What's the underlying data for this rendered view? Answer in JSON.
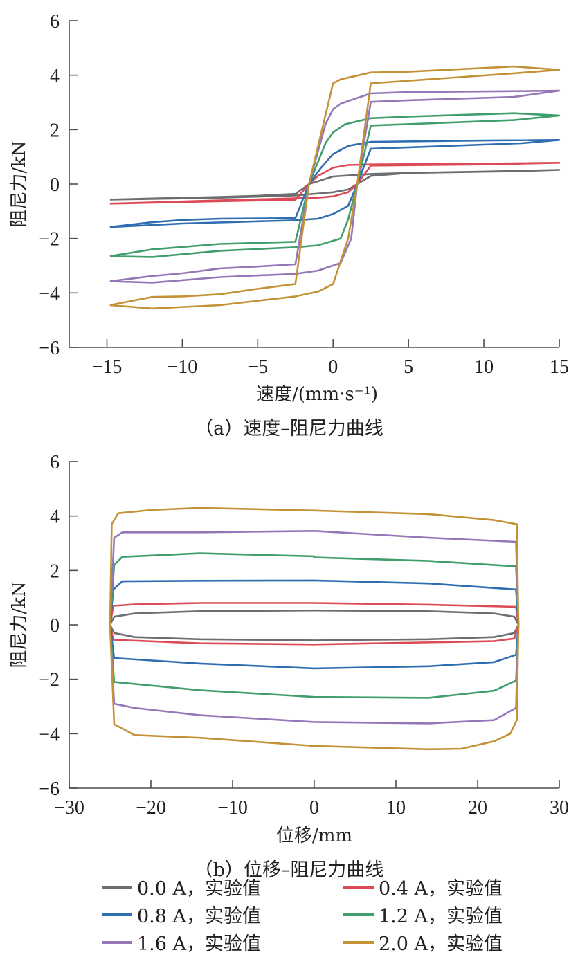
{
  "colors": {
    "0.0A": "#6d6e70",
    "0.4A": "#dc4b55",
    "0.8A": "#2f6db1",
    "1.2A": "#3f9e6c",
    "1.6A": "#9577b8",
    "2.0A": "#c39236",
    "axis": "#4d4d4f"
  },
  "legend": [
    {
      "key": "0.0A",
      "label": "0.0 A，实验值"
    },
    {
      "key": "0.4A",
      "label": "0.4 A，实验值"
    },
    {
      "key": "0.8A",
      "label": "0.8 A，实验值"
    },
    {
      "key": "1.2A",
      "label": "1.2 A，实验值"
    },
    {
      "key": "1.6A",
      "label": "1.6 A，实验值"
    },
    {
      "key": "2.0A",
      "label": "2.0 A，实验值"
    }
  ],
  "captions": {
    "a": "（a）速度–阻尼力曲线",
    "b": "（b）位移–阻尼力曲线"
  },
  "chart_data": [
    {
      "type": "line",
      "title": "（a）速度–阻尼力曲线",
      "xlabel": "速度/(mm·s⁻¹)",
      "ylabel": "阻尼力/kN",
      "xlim": [
        -17.5,
        15
      ],
      "ylim": [
        -6,
        6
      ],
      "xticks": [
        -15,
        -10,
        -5,
        0,
        5,
        10,
        15
      ],
      "yticks": [
        -6,
        -4,
        -2,
        0,
        2,
        4,
        6
      ],
      "xtick_labels": [
        "−15",
        "−10",
        "−5",
        "0",
        "5",
        "10",
        "15"
      ],
      "ytick_labels": [
        "−6",
        "−4",
        "−2",
        "0",
        "2",
        "4",
        "6"
      ],
      "grid": false,
      "series": [
        {
          "name": "0.0 A，实验值",
          "key": "0.0A",
          "points": [
            [
              -14.8,
              -0.57
            ],
            [
              -12,
              -0.53
            ],
            [
              -7.5,
              -0.47
            ],
            [
              -5,
              -0.43
            ],
            [
              -2.5,
              -0.36
            ],
            [
              -1.6,
              0
            ],
            [
              0,
              0.28
            ],
            [
              2.5,
              0.37
            ],
            [
              5,
              0.41
            ],
            [
              10,
              0.46
            ],
            [
              15,
              0.52
            ],
            [
              12,
              0.47
            ],
            [
              5,
              0.41
            ],
            [
              2.5,
              0.3
            ],
            [
              1.6,
              0
            ],
            [
              1,
              -0.2
            ],
            [
              0,
              -0.3
            ],
            [
              -2.5,
              -0.42
            ],
            [
              -7.5,
              -0.5
            ],
            [
              -14.8,
              -0.57
            ]
          ]
        },
        {
          "name": "0.4 A，实验值",
          "key": "0.4A",
          "points": [
            [
              -14.8,
              -0.72
            ],
            [
              -7.5,
              -0.63
            ],
            [
              -2.5,
              -0.58
            ],
            [
              -1.6,
              0
            ],
            [
              -1,
              0.3
            ],
            [
              0,
              0.6
            ],
            [
              1,
              0.7
            ],
            [
              2.5,
              0.72
            ],
            [
              10,
              0.75
            ],
            [
              15,
              0.78
            ],
            [
              10,
              0.72
            ],
            [
              2.5,
              0.68
            ],
            [
              1.6,
              0
            ],
            [
              1,
              -0.3
            ],
            [
              0,
              -0.45
            ],
            [
              -1,
              -0.5
            ],
            [
              -2.5,
              -0.52
            ],
            [
              -7.5,
              -0.6
            ],
            [
              -14.8,
              -0.72
            ]
          ]
        },
        {
          "name": "0.8 A，实验值",
          "key": "0.8A",
          "points": [
            [
              -14.8,
              -1.58
            ],
            [
              -12,
              -1.4
            ],
            [
              -10,
              -1.32
            ],
            [
              -7.5,
              -1.27
            ],
            [
              -2.5,
              -1.25
            ],
            [
              -1.6,
              0
            ],
            [
              -0.8,
              0.6
            ],
            [
              0,
              1.1
            ],
            [
              1,
              1.4
            ],
            [
              2.5,
              1.55
            ],
            [
              10,
              1.6
            ],
            [
              15,
              1.62
            ],
            [
              12.5,
              1.5
            ],
            [
              2.5,
              1.3
            ],
            [
              1.6,
              0
            ],
            [
              1,
              -0.8
            ],
            [
              0,
              -1.1
            ],
            [
              -1,
              -1.27
            ],
            [
              -2.5,
              -1.33
            ],
            [
              -10,
              -1.45
            ],
            [
              -14.8,
              -1.58
            ]
          ]
        },
        {
          "name": "1.2 A，实验值",
          "key": "1.2A",
          "points": [
            [
              -14.8,
              -2.65
            ],
            [
              -12,
              -2.4
            ],
            [
              -7.5,
              -2.2
            ],
            [
              -2.5,
              -2.12
            ],
            [
              -1.6,
              0
            ],
            [
              -0.5,
              1.5
            ],
            [
              0,
              1.9
            ],
            [
              0.8,
              2.2
            ],
            [
              2.5,
              2.42
            ],
            [
              5,
              2.48
            ],
            [
              12,
              2.6
            ],
            [
              15,
              2.52
            ],
            [
              12,
              2.35
            ],
            [
              2.5,
              2.15
            ],
            [
              1.6,
              0
            ],
            [
              1,
              -1.3
            ],
            [
              0.5,
              -2
            ],
            [
              -1,
              -2.25
            ],
            [
              -2.5,
              -2.32
            ],
            [
              -7.5,
              -2.45
            ],
            [
              -12,
              -2.68
            ],
            [
              -14.8,
              -2.65
            ]
          ]
        },
        {
          "name": "1.6 A，实验值",
          "key": "1.6A",
          "points": [
            [
              -14.8,
              -3.57
            ],
            [
              -12,
              -3.38
            ],
            [
              -10,
              -3.28
            ],
            [
              -7.5,
              -3.1
            ],
            [
              -5,
              -3.03
            ],
            [
              -2.5,
              -2.95
            ],
            [
              -1.6,
              0
            ],
            [
              -0.5,
              2.2
            ],
            [
              0,
              2.75
            ],
            [
              0.5,
              2.95
            ],
            [
              1,
              3.05
            ],
            [
              2.5,
              3.33
            ],
            [
              5,
              3.38
            ],
            [
              15,
              3.43
            ],
            [
              12,
              3.2
            ],
            [
              5,
              3.08
            ],
            [
              2.5,
              3.02
            ],
            [
              1.6,
              0
            ],
            [
              1.2,
              -2
            ],
            [
              0.5,
              -2.9
            ],
            [
              -1,
              -3.18
            ],
            [
              -2.5,
              -3.3
            ],
            [
              -7.5,
              -3.42
            ],
            [
              -12,
              -3.62
            ],
            [
              -14.8,
              -3.57
            ]
          ]
        },
        {
          "name": "2.0 A，实验值",
          "key": "2.0A",
          "points": [
            [
              -14.8,
              -4.45
            ],
            [
              -12,
              -4.15
            ],
            [
              -10,
              -4.13
            ],
            [
              -7.5,
              -4.05
            ],
            [
              -5,
              -3.85
            ],
            [
              -2.5,
              -3.67
            ],
            [
              -1.6,
              0
            ],
            [
              0,
              3.7
            ],
            [
              0.5,
              3.85
            ],
            [
              2.5,
              4.1
            ],
            [
              5,
              4.13
            ],
            [
              12,
              4.32
            ],
            [
              15,
              4.2
            ],
            [
              12,
              4.07
            ],
            [
              2.5,
              3.7
            ],
            [
              1.6,
              0
            ],
            [
              1,
              -2
            ],
            [
              0,
              -3.68
            ],
            [
              -1,
              -3.95
            ],
            [
              -2.5,
              -4.13
            ],
            [
              -7.5,
              -4.45
            ],
            [
              -12,
              -4.57
            ],
            [
              -14.8,
              -4.45
            ]
          ]
        }
      ]
    },
    {
      "type": "line",
      "title": "（b）位移–阻尼力曲线",
      "xlabel": "位移/mm",
      "ylabel": "阻尼力/kN",
      "xlim": [
        -30,
        30
      ],
      "ylim": [
        -6,
        6
      ],
      "xticks": [
        -30,
        -20,
        -10,
        0,
        10,
        20,
        30
      ],
      "yticks": [
        -6,
        -4,
        -2,
        0,
        2,
        4,
        6
      ],
      "xtick_labels": [
        "−30",
        "−20",
        "−10",
        "0",
        "10",
        "20",
        "30"
      ],
      "ytick_labels": [
        "−6",
        "−4",
        "−2",
        "0",
        "2",
        "4",
        "6"
      ],
      "grid": false,
      "series": [
        {
          "name": "0.0 A，实验值",
          "key": "0.0A",
          "points": [
            [
              -25,
              0
            ],
            [
              -24.5,
              0.3
            ],
            [
              -22,
              0.42
            ],
            [
              -14,
              0.5
            ],
            [
              0,
              0.53
            ],
            [
              14,
              0.5
            ],
            [
              22,
              0.42
            ],
            [
              24.5,
              0.3
            ],
            [
              25,
              0
            ],
            [
              24.5,
              -0.3
            ],
            [
              22,
              -0.45
            ],
            [
              14,
              -0.53
            ],
            [
              0,
              -0.57
            ],
            [
              -14,
              -0.53
            ],
            [
              -22,
              -0.45
            ],
            [
              -24.5,
              -0.3
            ],
            [
              -25,
              0
            ]
          ]
        },
        {
          "name": "0.4 A，实验值",
          "key": "0.4A",
          "points": [
            [
              -25,
              0
            ],
            [
              -24.6,
              0.7
            ],
            [
              -22,
              0.75
            ],
            [
              -14,
              0.8
            ],
            [
              0,
              0.8
            ],
            [
              14,
              0.74
            ],
            [
              24.7,
              0.66
            ],
            [
              25,
              0
            ],
            [
              24.5,
              -0.5
            ],
            [
              22,
              -0.6
            ],
            [
              0,
              -0.72
            ],
            [
              -14,
              -0.68
            ],
            [
              -24.6,
              -0.55
            ],
            [
              -25,
              0
            ]
          ]
        },
        {
          "name": "0.8 A，实验值",
          "key": "0.8A",
          "points": [
            [
              -25,
              0
            ],
            [
              -24.6,
              1.3
            ],
            [
              -23.5,
              1.6
            ],
            [
              -14,
              1.62
            ],
            [
              0,
              1.63
            ],
            [
              14,
              1.52
            ],
            [
              24.7,
              1.3
            ],
            [
              25,
              0
            ],
            [
              24.7,
              -1.1
            ],
            [
              22,
              -1.37
            ],
            [
              14,
              -1.52
            ],
            [
              0,
              -1.6
            ],
            [
              -14,
              -1.42
            ],
            [
              -24.5,
              -1.22
            ],
            [
              -25,
              0
            ]
          ]
        },
        {
          "name": "1.2 A，实验值",
          "key": "1.2A",
          "points": [
            [
              -25,
              0
            ],
            [
              -24.5,
              2.2
            ],
            [
              -23.5,
              2.5
            ],
            [
              -14,
              2.63
            ],
            [
              0,
              2.52
            ],
            [
              0,
              2.48
            ],
            [
              14,
              2.35
            ],
            [
              24.7,
              2.15
            ],
            [
              25,
              0
            ],
            [
              24.7,
              -2.05
            ],
            [
              22,
              -2.42
            ],
            [
              14,
              -2.68
            ],
            [
              0,
              -2.65
            ],
            [
              -14,
              -2.4
            ],
            [
              -24.5,
              -2.1
            ],
            [
              -25,
              0
            ]
          ]
        },
        {
          "name": "1.6 A，实验值",
          "key": "1.6A",
          "points": [
            [
              -25,
              0
            ],
            [
              -24.5,
              3.2
            ],
            [
              -23.5,
              3.4
            ],
            [
              -14,
              3.4
            ],
            [
              0,
              3.45
            ],
            [
              14,
              3.2
            ],
            [
              24.7,
              3.05
            ],
            [
              25,
              0
            ],
            [
              24.7,
              -3.05
            ],
            [
              22,
              -3.5
            ],
            [
              14,
              -3.62
            ],
            [
              0,
              -3.57
            ],
            [
              -14,
              -3.32
            ],
            [
              -22,
              -3.05
            ],
            [
              -24.5,
              -2.9
            ],
            [
              -25,
              0
            ]
          ]
        },
        {
          "name": "2.0 A，实验值",
          "key": "2.0A",
          "points": [
            [
              -25,
              0
            ],
            [
              -24.8,
              3.7
            ],
            [
              -24,
              4.1
            ],
            [
              -20,
              4.22
            ],
            [
              -14,
              4.3
            ],
            [
              0,
              4.2
            ],
            [
              14,
              4.07
            ],
            [
              22,
              3.85
            ],
            [
              24.8,
              3.7
            ],
            [
              25,
              0
            ],
            [
              24.8,
              -3.5
            ],
            [
              24,
              -4
            ],
            [
              22,
              -4.28
            ],
            [
              18,
              -4.55
            ],
            [
              14,
              -4.57
            ],
            [
              0,
              -4.45
            ],
            [
              -14,
              -4.15
            ],
            [
              -22,
              -4.05
            ],
            [
              -24.5,
              -3.65
            ],
            [
              -25,
              0
            ]
          ]
        }
      ]
    }
  ]
}
